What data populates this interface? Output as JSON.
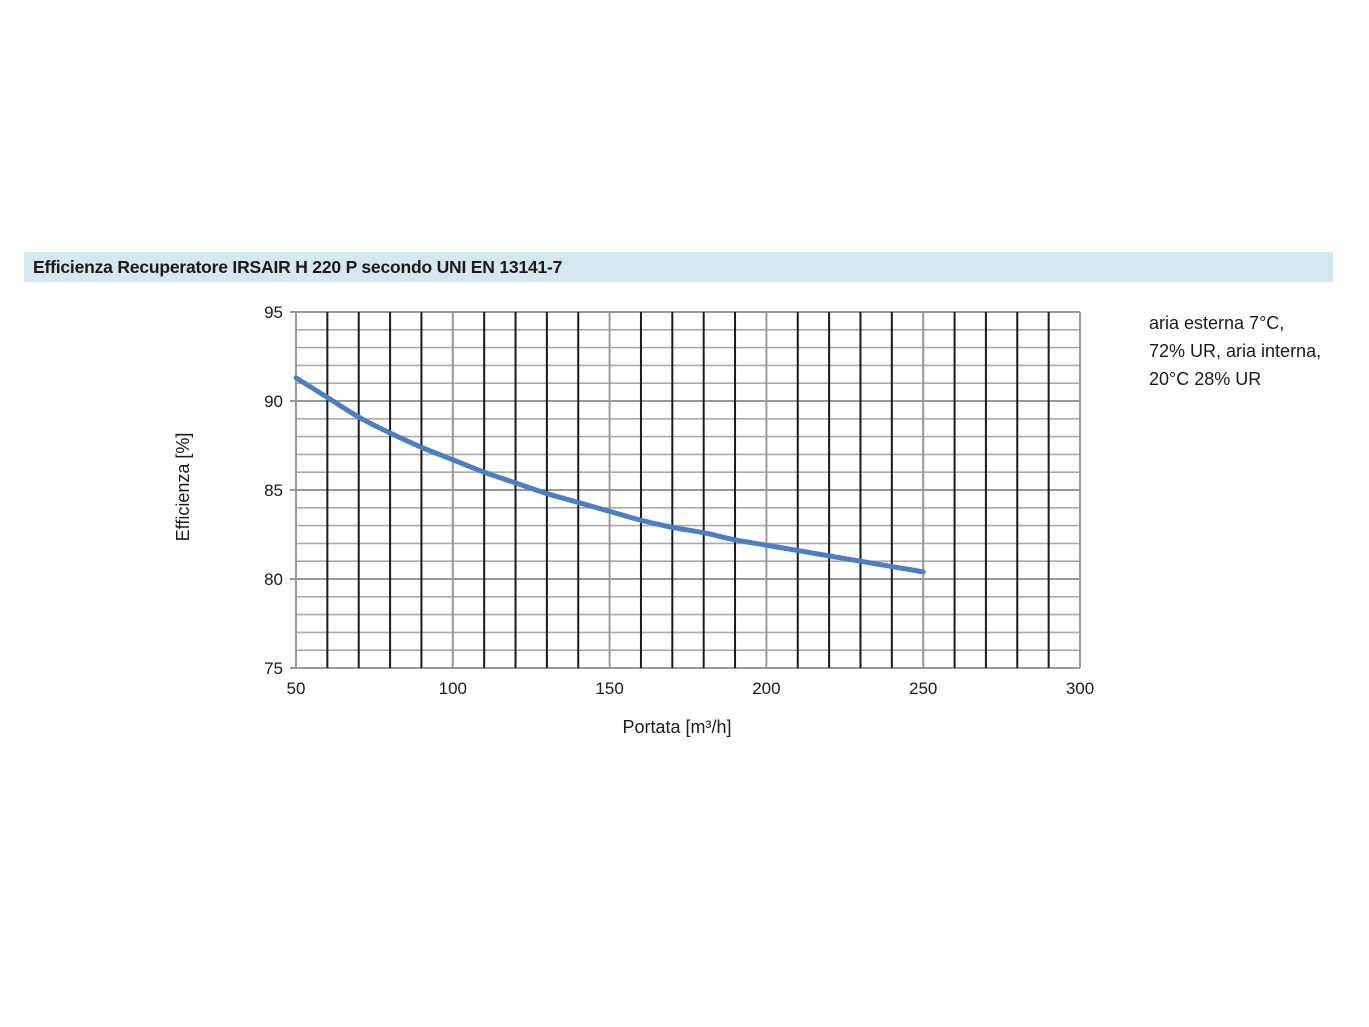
{
  "chart_data": {
    "type": "line",
    "title": "Efficienza Recuperatore IRSAIR H 220 P secondo UNI EN 13141-7",
    "xlabel": "Portata [m³/h]",
    "ylabel": "Efficienza [%]",
    "xlim": [
      50,
      300
    ],
    "ylim": [
      75,
      95
    ],
    "x_ticks": [
      "50",
      "100",
      "150",
      "200",
      "250",
      "300"
    ],
    "y_ticks": [
      "95",
      "90",
      "85",
      "80",
      "75"
    ],
    "grid": true,
    "series": [
      {
        "color": "#4a7fc1",
        "x": [
          50,
          60,
          70,
          80,
          90,
          100,
          110,
          120,
          130,
          140,
          150,
          160,
          170,
          180,
          190,
          200,
          210,
          220,
          230,
          240,
          250
        ],
        "y": [
          91.3,
          90.2,
          89.1,
          88.2,
          87.4,
          86.7,
          86.0,
          85.4,
          84.8,
          84.3,
          83.8,
          83.3,
          82.9,
          82.6,
          82.2,
          81.9,
          81.6,
          81.3,
          81.0,
          80.7,
          80.4
        ]
      }
    ],
    "annotation": [
      "aria esterna 7°C,",
      "72% UR, aria interna,",
      "20°C 28% UR"
    ]
  },
  "colors": {
    "title_background": "#d5e7ef",
    "grid_major": "#999999",
    "grid_minor": "#1a1a1a",
    "line": "#4a7fc1"
  }
}
